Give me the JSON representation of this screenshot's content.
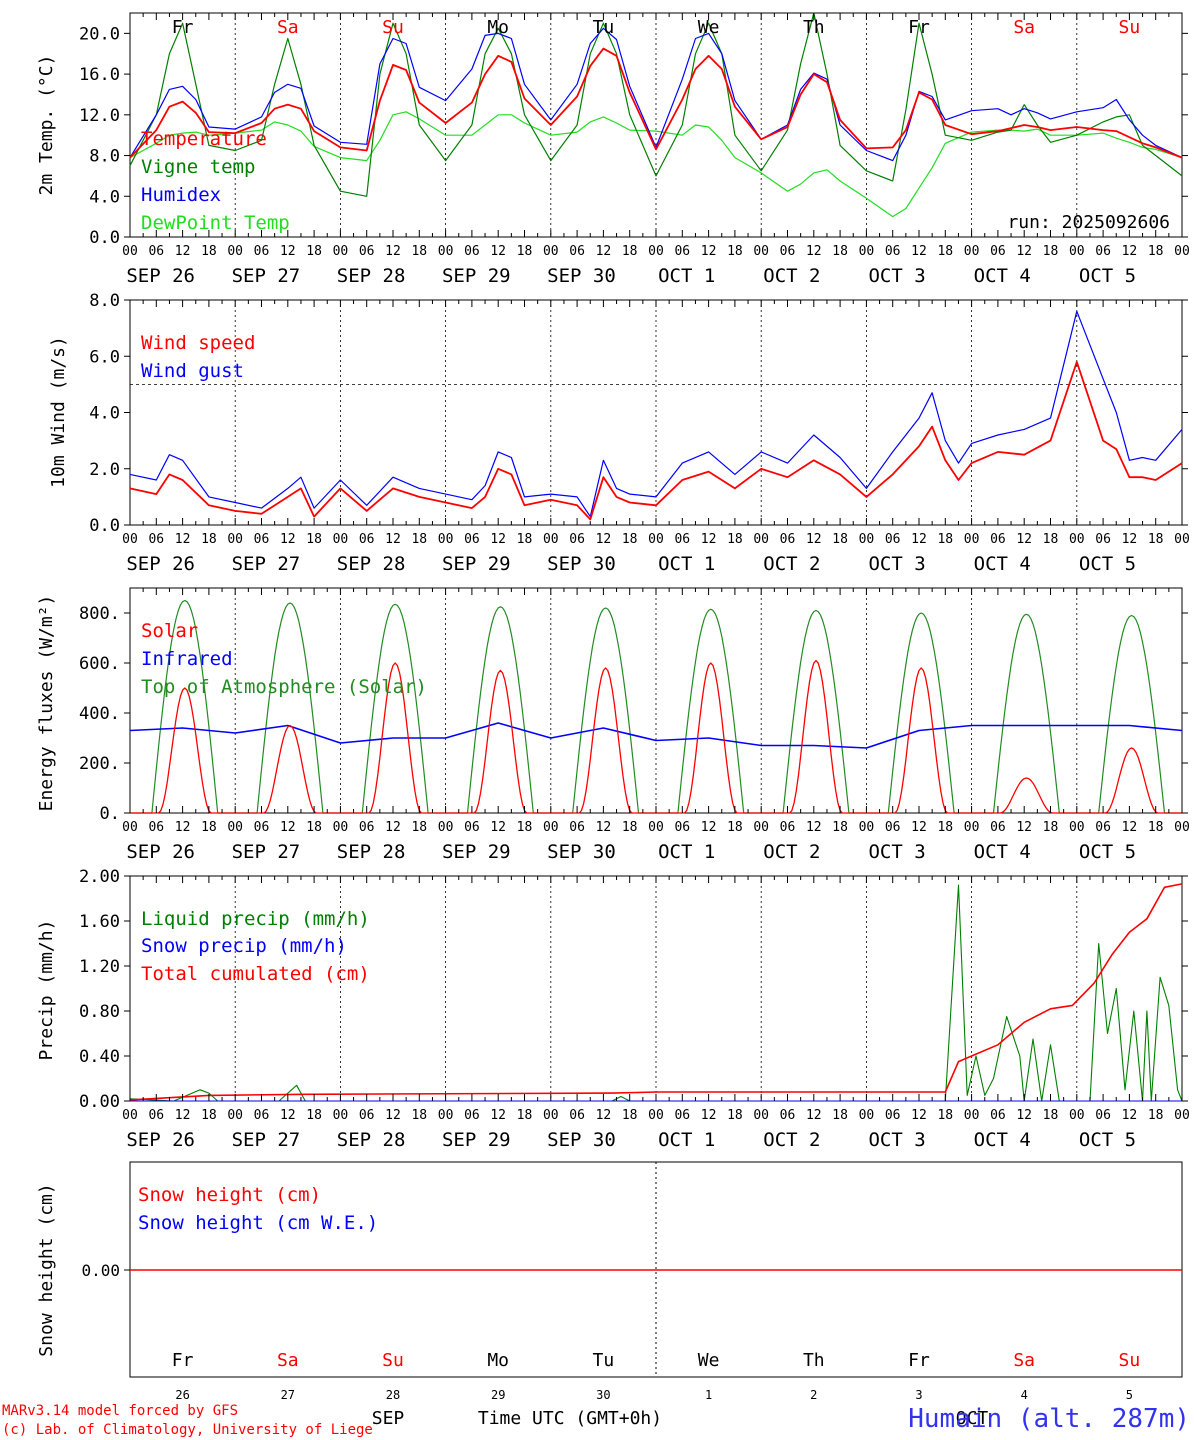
{
  "chart_data": [
    {
      "type": "line",
      "ylabel": "2m Temp. (°C)",
      "ylim": [
        0,
        22
      ],
      "yticks": [
        "0.0",
        "4.0",
        "8.0",
        "12.0",
        "16.0",
        "20.0"
      ],
      "ytick_values": [
        0,
        4,
        8,
        12,
        16,
        20
      ],
      "legend": [
        "Temperature",
        "Vigne temp",
        "Humidex",
        "DewPoint Temp"
      ],
      "annotation": "run: 2025092606",
      "x_hours": [
        0,
        6,
        9,
        12,
        15,
        18,
        24,
        30,
        33,
        36,
        39,
        42,
        48,
        54,
        57,
        60,
        63,
        66,
        72,
        78,
        81,
        84,
        87,
        90,
        96,
        102,
        105,
        108,
        111,
        114,
        120,
        126,
        129,
        132,
        135,
        138,
        144,
        150,
        153,
        156,
        159,
        162,
        168,
        174,
        177,
        180,
        183,
        186,
        192,
        198,
        201,
        204,
        207,
        210,
        216,
        222,
        225,
        228,
        231,
        234,
        240
      ],
      "series": [
        {
          "name": "Temperature",
          "color": "#ff0000",
          "values": [
            7.8,
            10.5,
            12.8,
            13.3,
            12.2,
            10.3,
            10.2,
            11.2,
            12.6,
            13.0,
            12.6,
            10.4,
            8.8,
            8.5,
            13.4,
            16.9,
            16.4,
            13.2,
            11.2,
            13.2,
            16.0,
            17.8,
            17.2,
            13.6,
            11.0,
            13.8,
            16.8,
            18.5,
            17.8,
            14.2,
            8.6,
            13.5,
            16.5,
            17.8,
            16.5,
            12.8,
            9.6,
            10.8,
            14.0,
            16.0,
            15.2,
            11.5,
            8.7,
            8.8,
            10.5,
            14.2,
            13.5,
            11.0,
            10.1,
            10.4,
            10.7,
            11.0,
            10.8,
            10.5,
            10.8,
            10.5,
            10.4,
            9.8,
            9.2,
            8.8,
            7.8
          ]
        },
        {
          "name": "Vigne temp",
          "color": "#008000",
          "values": [
            7.0,
            12.0,
            18.0,
            21.0,
            15.0,
            9.0,
            8.5,
            9.5,
            15.0,
            19.5,
            15.0,
            9.0,
            4.5,
            4.0,
            16.0,
            21.0,
            18.0,
            11.0,
            7.5,
            11.0,
            18.0,
            20.5,
            18.0,
            12.0,
            7.5,
            11.0,
            18.0,
            21.0,
            18.0,
            12.0,
            6.0,
            11.0,
            18.0,
            21.0,
            18.0,
            10.0,
            6.5,
            10.5,
            17.0,
            22.0,
            16.0,
            9.0,
            6.5,
            5.5,
            12.5,
            21.0,
            16.0,
            10.0,
            9.5,
            10.3,
            10.5,
            13.0,
            11.0,
            9.3,
            10.0,
            11.3,
            11.8,
            12.0,
            9.0,
            8.0,
            6.0
          ]
        },
        {
          "name": "Humidex",
          "color": "#0000ff",
          "values": [
            7.8,
            12.0,
            14.5,
            14.8,
            13.5,
            10.8,
            10.6,
            11.8,
            14.2,
            15.0,
            14.6,
            10.9,
            9.3,
            9.1,
            17.0,
            19.5,
            19.0,
            14.7,
            13.4,
            16.5,
            19.8,
            20.0,
            19.5,
            15.0,
            11.5,
            15.0,
            19.0,
            20.5,
            19.4,
            14.8,
            8.8,
            15.5,
            19.5,
            20.0,
            18.0,
            13.4,
            9.6,
            11.0,
            14.5,
            16.1,
            15.5,
            11.0,
            8.5,
            7.5,
            10.0,
            14.3,
            13.8,
            11.5,
            12.4,
            12.6,
            12.0,
            12.6,
            12.2,
            11.6,
            12.3,
            12.7,
            13.5,
            11.5,
            10.0,
            9.0,
            7.8
          ]
        },
        {
          "name": "DewPoint Temp",
          "color": "#22dd22",
          "values": [
            7.8,
            9.2,
            10.0,
            10.2,
            10.3,
            10.0,
            10.2,
            10.5,
            11.3,
            11.0,
            10.4,
            8.9,
            7.8,
            7.5,
            9.5,
            12.0,
            12.3,
            11.6,
            10.0,
            10.0,
            11.0,
            12.0,
            12.0,
            11.2,
            10.0,
            10.3,
            11.3,
            11.8,
            11.2,
            10.5,
            10.4,
            10.0,
            11.0,
            10.8,
            9.5,
            7.8,
            6.3,
            4.5,
            5.2,
            6.3,
            6.6,
            5.5,
            3.8,
            2.0,
            2.8,
            4.8,
            6.8,
            9.2,
            10.3,
            10.5,
            10.5,
            10.4,
            10.6,
            10.0,
            10.0,
            10.2,
            9.7,
            9.3,
            8.8,
            8.6,
            7.8
          ]
        }
      ]
    },
    {
      "type": "line",
      "ylabel": "10m Wind (m/s)",
      "ylim": [
        0,
        8
      ],
      "yticks": [
        "0.0",
        "2.0",
        "4.0",
        "6.0",
        "8.0"
      ],
      "ytick_values": [
        0,
        2,
        4,
        6,
        8
      ],
      "reference_line": 5.0,
      "legend": [
        "Wind speed",
        "Wind gust"
      ],
      "x_hours": [
        0,
        6,
        9,
        12,
        18,
        24,
        30,
        36,
        39,
        42,
        48,
        54,
        60,
        66,
        72,
        78,
        81,
        84,
        87,
        90,
        96,
        102,
        105,
        108,
        111,
        114,
        120,
        126,
        132,
        138,
        144,
        150,
        156,
        162,
        168,
        174,
        180,
        183,
        186,
        189,
        192,
        198,
        204,
        210,
        216,
        222,
        225,
        228,
        231,
        234,
        240
      ],
      "series": [
        {
          "name": "Wind speed",
          "color": "#ff0000",
          "values": [
            1.3,
            1.1,
            1.8,
            1.6,
            0.7,
            0.5,
            0.4,
            1.0,
            1.3,
            0.3,
            1.3,
            0.5,
            1.3,
            1.0,
            0.8,
            0.6,
            1.0,
            2.0,
            1.8,
            0.7,
            0.9,
            0.7,
            0.2,
            1.7,
            1.0,
            0.8,
            0.7,
            1.6,
            1.9,
            1.3,
            2.0,
            1.7,
            2.3,
            1.8,
            1.0,
            1.8,
            2.8,
            3.5,
            2.3,
            1.6,
            2.2,
            2.6,
            2.5,
            3.0,
            5.8,
            3.0,
            2.7,
            1.7,
            1.7,
            1.6,
            2.2
          ]
        },
        {
          "name": "Wind gust",
          "color": "#0000ff",
          "values": [
            1.8,
            1.6,
            2.5,
            2.3,
            1.0,
            0.8,
            0.6,
            1.3,
            1.7,
            0.6,
            1.6,
            0.7,
            1.7,
            1.3,
            1.1,
            0.9,
            1.4,
            2.6,
            2.4,
            1.0,
            1.1,
            1.0,
            0.3,
            2.3,
            1.3,
            1.1,
            1.0,
            2.2,
            2.6,
            1.8,
            2.6,
            2.2,
            3.2,
            2.4,
            1.3,
            2.6,
            3.8,
            4.7,
            3.0,
            2.2,
            2.9,
            3.2,
            3.4,
            3.8,
            7.6,
            5.2,
            4.0,
            2.3,
            2.4,
            2.3,
            3.4
          ]
        }
      ]
    },
    {
      "type": "line",
      "ylabel": "Energy fluxes (W/m²)",
      "ylim": [
        0,
        900
      ],
      "yticks": [
        "0.",
        "200.",
        "400.",
        "600.",
        "800."
      ],
      "ytick_values": [
        0,
        200,
        400,
        600,
        800
      ],
      "legend": [
        "Solar",
        "Infrared",
        "Top of Atmosphere (Solar)"
      ],
      "toa_peaks": [
        850,
        840,
        835,
        825,
        820,
        815,
        810,
        800,
        795,
        790
      ],
      "solar_peaks": [
        500,
        350,
        600,
        570,
        580,
        600,
        610,
        580,
        140,
        260
      ],
      "series": [
        {
          "name": "Infrared",
          "color": "#0000ff",
          "x_hours": [
            0,
            12,
            24,
            36,
            48,
            60,
            72,
            84,
            96,
            108,
            120,
            132,
            144,
            156,
            168,
            180,
            192,
            204,
            216,
            228,
            240
          ],
          "values": [
            330,
            340,
            320,
            350,
            280,
            300,
            300,
            360,
            300,
            340,
            290,
            300,
            270,
            270,
            260,
            330,
            350,
            350,
            350,
            350,
            330
          ]
        }
      ]
    },
    {
      "type": "line",
      "ylabel": "Precip (mm/h)",
      "ylim": [
        0,
        2.0
      ],
      "yticks": [
        "0.00",
        "0.40",
        "0.80",
        "1.20",
        "1.60",
        "2.00"
      ],
      "ytick_values": [
        0,
        0.4,
        0.8,
        1.2,
        1.6,
        2.0
      ],
      "legend": [
        "Liquid precip (mm/h)",
        "Snow precip (mm/h)",
        "Total cumulated (cm)"
      ],
      "series": [
        {
          "name": "Liquid precip (mm/h)",
          "color": "#008000",
          "x_hours": [
            0,
            10,
            16,
            18,
            20,
            34,
            38,
            40,
            110,
            112,
            114,
            186,
            189,
            191,
            193,
            195,
            197,
            200,
            203,
            204,
            206,
            208,
            210,
            212,
            213,
            215,
            219,
            221,
            223,
            225,
            227,
            229,
            231,
            232,
            233,
            235,
            237,
            239,
            240
          ],
          "values": [
            0.02,
            0,
            0.1,
            0.07,
            0,
            0,
            0.14,
            0,
            0,
            0.04,
            0,
            0,
            1.92,
            0.05,
            0.4,
            0.05,
            0.2,
            0.75,
            0.4,
            0,
            0.55,
            0,
            0.5,
            0,
            0,
            0,
            0,
            1.4,
            0.6,
            1.0,
            0.1,
            0.8,
            0,
            0.8,
            0,
            1.1,
            0.85,
            0.1,
            0
          ]
        },
        {
          "name": "Snow precip (mm/h)",
          "color": "#0000ff",
          "x_hours": [
            0,
            240
          ],
          "values": [
            0,
            0
          ]
        },
        {
          "name": "Total cumulated (cm)",
          "color": "#ff0000",
          "x_hours": [
            0,
            18,
            40,
            110,
            120,
            186,
            189,
            192,
            198,
            204,
            210,
            215,
            220,
            224,
            228,
            232,
            236,
            240
          ],
          "values": [
            0.01,
            0.05,
            0.06,
            0.07,
            0.08,
            0.08,
            0.35,
            0.4,
            0.5,
            0.7,
            0.82,
            0.85,
            1.05,
            1.3,
            1.5,
            1.62,
            1.9,
            1.93
          ]
        }
      ]
    },
    {
      "type": "line",
      "ylabel": "Snow height (cm)",
      "ytick": "0.00",
      "legend": [
        "Snow height (cm)",
        "Snow height (cm W.E.)"
      ],
      "series": [
        {
          "name": "Snow height (cm)",
          "color": "#ff0000",
          "values": [
            0,
            0
          ]
        }
      ]
    }
  ],
  "weekdays": [
    {
      "label": "Fr",
      "color": "#000000"
    },
    {
      "label": "Sa",
      "color": "#ff0000"
    },
    {
      "label": "Su",
      "color": "#ff0000"
    },
    {
      "label": "Mo",
      "color": "#000000"
    },
    {
      "label": "Tu",
      "color": "#000000"
    },
    {
      "label": "We",
      "color": "#000000"
    },
    {
      "label": "Th",
      "color": "#000000"
    },
    {
      "label": "Fr",
      "color": "#000000"
    },
    {
      "label": "Sa",
      "color": "#ff0000"
    },
    {
      "label": "Su",
      "color": "#ff0000"
    }
  ],
  "day_labels": [
    "SEP 26",
    "SEP 27",
    "SEP 28",
    "SEP 29",
    "SEP 30",
    "OCT  1",
    "OCT  2",
    "OCT  3",
    "OCT  4",
    "OCT  5"
  ],
  "hour_ticks": [
    "00",
    "06",
    "12",
    "18"
  ],
  "hour_end": "00",
  "day_numbers": [
    "26",
    "27",
    "28",
    "29",
    "30",
    "1",
    "2",
    "3",
    "4",
    "5"
  ],
  "month_labels": [
    "SEP",
    "OCT"
  ],
  "xlabel": "Time UTC (GMT+0h)",
  "footer": {
    "model": "MARv3.14 model forced by GFS",
    "credit": "(c) Lab. of Climatology, University of Liege",
    "location": "Humain (alt. 287m)"
  },
  "colors": {
    "red": "#ff0000",
    "green": "#008000",
    "blue": "#0000ff",
    "lightgreen": "#22dd22",
    "darkgreen": "#228b22"
  }
}
